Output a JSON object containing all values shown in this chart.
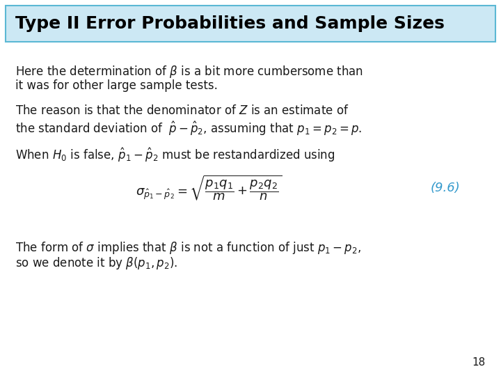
{
  "title": "Type II Error Probabilities and Sample Sizes",
  "title_bg_color": "#cce8f4",
  "title_border_color": "#5bb8d4",
  "title_text_color": "#000000",
  "background_color": "#ffffff",
  "slide_bg": "#ffffff",
  "number_color": "#3399cc",
  "text_color": "#1a1a1a",
  "page_number": "18",
  "para1_line1": "Here the determination of $\\beta$ is a bit more cumbersome than",
  "para1_line2": "it was for other large sample tests.",
  "para2_line1": "The reason is that the denominator of $Z$ is an estimate of",
  "para2_line2": "the standard deviation of $\\;\\hat{p} - \\hat{p}_2$, assuming that $p_1 = p_2 = p$.",
  "para3_line1": "When $H_0$ is false, $\\hat{p}_1 - \\hat{p}_2$ must be restandardized using",
  "formula": "$\\sigma_{\\hat{p}_1 - \\hat{p}_2} = \\sqrt{\\dfrac{p_1 q_1}{m} + \\dfrac{p_2 q_2}{n}}$",
  "formula_label": "(9.6)",
  "para4_line1": "The form of $\\sigma$ implies that $\\beta$ is not a function of just $p_1 - p_2$,",
  "para4_line2": "so we denote it by $\\beta(p_1, p_2)$.",
  "title_fontsize": 18,
  "body_fontsize": 12,
  "formula_fontsize": 13,
  "label_fontsize": 13
}
